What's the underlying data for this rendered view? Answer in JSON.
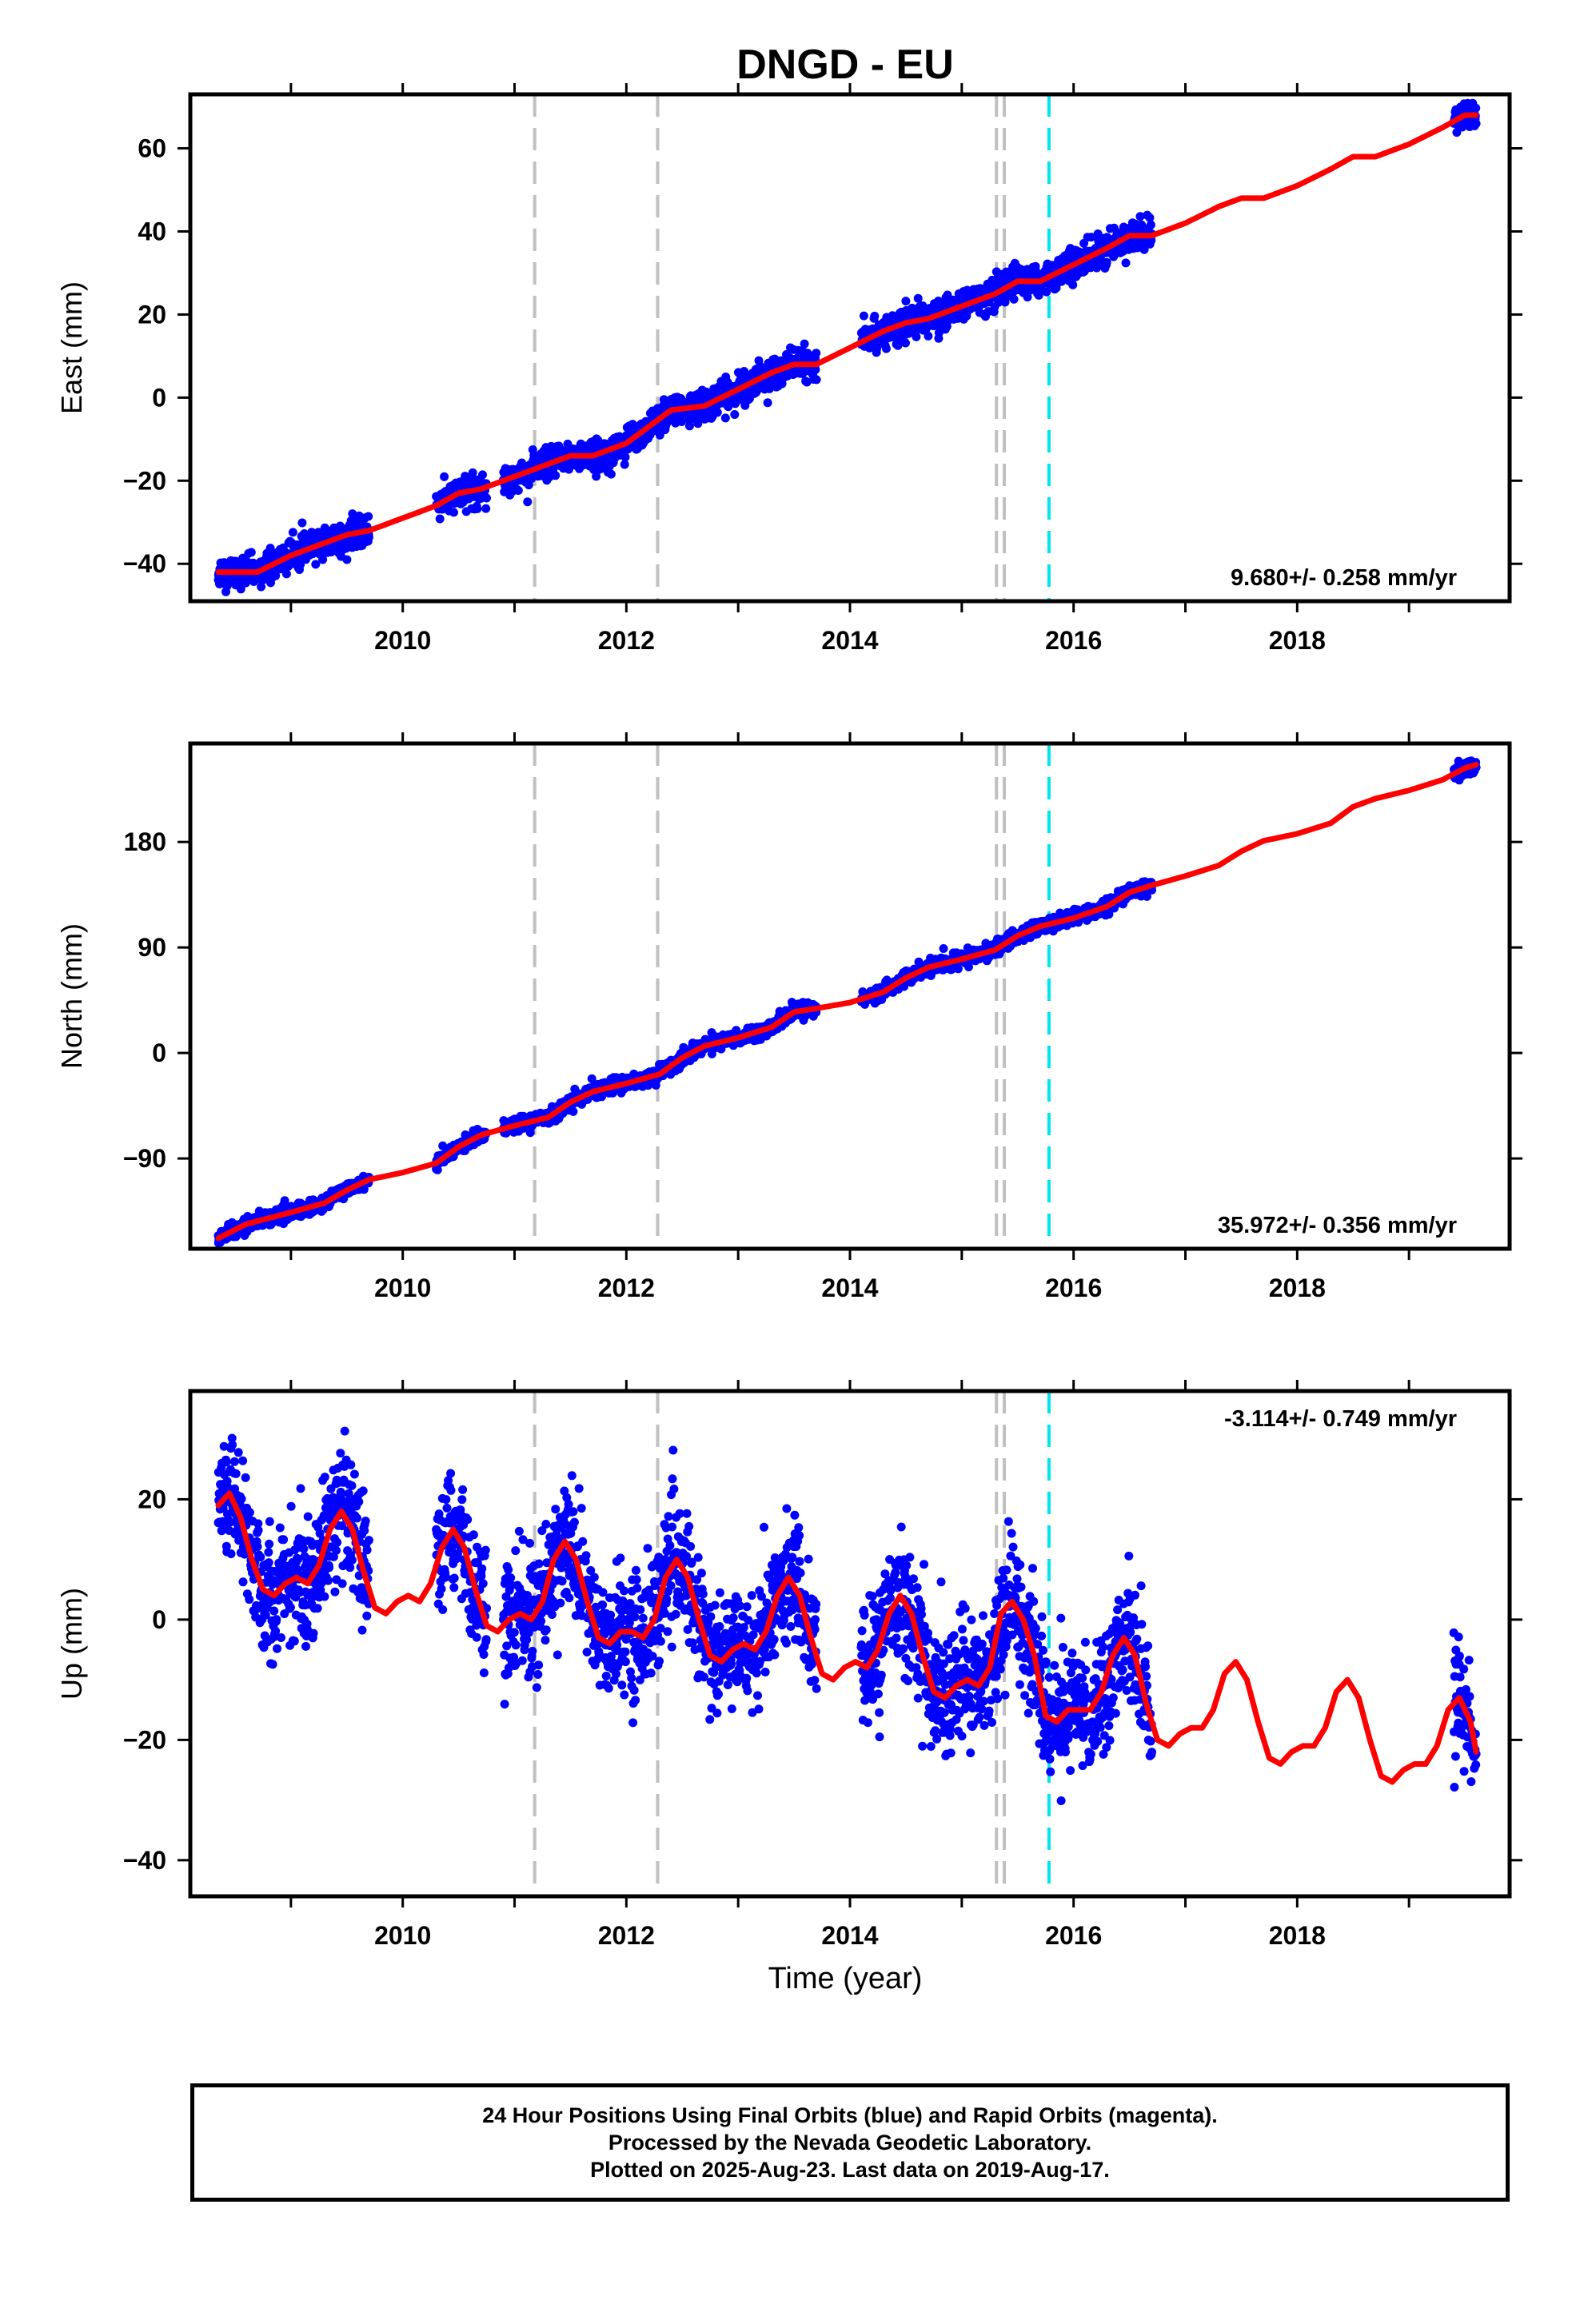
{
  "title": "DNGD - EU",
  "xlabel": "Time (year)",
  "caption": [
    "24 Hour Positions Using Final Orbits (blue) and Rapid Orbits (magenta).",
    "Processed by the Nevada Geodetic Laboratory.",
    "Plotted on 2025-Aug-23. Last data on 2019-Aug-17."
  ],
  "colors": {
    "points": "#0000ff",
    "fit": "#ff0000",
    "event_gray": "#c0c0c0",
    "event_cyan": "#00e5ee",
    "axis": "#000000"
  },
  "chart_data": [
    {
      "type": "scatter",
      "component": "East",
      "ylabel": "East (mm)",
      "rate_label": "9.680+/- 0.258 mm/yr",
      "rate_position": "bottom-right",
      "xlim": [
        2008.1,
        2019.9
      ],
      "ylim": [
        -49,
        73
      ],
      "yticks": [
        -40,
        -20,
        0,
        20,
        40,
        60
      ],
      "xticks": [
        2010,
        2012,
        2014,
        2016,
        2018
      ],
      "event_lines_gray": [
        2011.18,
        2012.28,
        2015.31,
        2015.38
      ],
      "event_lines_cyan": [
        2015.78
      ],
      "data_segments": [
        [
          2008.35,
          2009.7
        ],
        [
          2010.3,
          2010.75
        ],
        [
          2010.9,
          2013.7
        ],
        [
          2014.1,
          2016.7
        ],
        [
          2019.4,
          2019.6
        ]
      ],
      "fit_points": [
        [
          2008.35,
          -42
        ],
        [
          2008.7,
          -42
        ],
        [
          2009.0,
          -38
        ],
        [
          2009.3,
          -35
        ],
        [
          2009.5,
          -33
        ],
        [
          2009.7,
          -32
        ],
        [
          2010.0,
          -29
        ],
        [
          2010.3,
          -26
        ],
        [
          2010.5,
          -23
        ],
        [
          2010.7,
          -22
        ],
        [
          2011.0,
          -19
        ],
        [
          2011.3,
          -16
        ],
        [
          2011.5,
          -14
        ],
        [
          2011.7,
          -14
        ],
        [
          2012.0,
          -11
        ],
        [
          2012.2,
          -7
        ],
        [
          2012.4,
          -3
        ],
        [
          2012.7,
          -2
        ],
        [
          2013.0,
          2
        ],
        [
          2013.3,
          6
        ],
        [
          2013.5,
          8
        ],
        [
          2013.7,
          8
        ],
        [
          2014.0,
          12
        ],
        [
          2014.3,
          16
        ],
        [
          2014.5,
          18
        ],
        [
          2014.7,
          19
        ],
        [
          2015.0,
          22
        ],
        [
          2015.3,
          25
        ],
        [
          2015.5,
          28
        ],
        [
          2015.7,
          28
        ],
        [
          2016.0,
          32
        ],
        [
          2016.3,
          36
        ],
        [
          2016.5,
          39
        ],
        [
          2016.7,
          39
        ],
        [
          2017.0,
          42
        ],
        [
          2017.3,
          46
        ],
        [
          2017.5,
          48
        ],
        [
          2017.7,
          48
        ],
        [
          2018.0,
          51
        ],
        [
          2018.3,
          55
        ],
        [
          2018.5,
          58
        ],
        [
          2018.7,
          58
        ],
        [
          2019.0,
          61
        ],
        [
          2019.3,
          65
        ],
        [
          2019.5,
          68
        ],
        [
          2019.6,
          68
        ]
      ],
      "noise_mm": 1.8
    },
    {
      "type": "scatter",
      "component": "North",
      "ylabel": "North (mm)",
      "rate_label": "35.972+/- 0.356 mm/yr",
      "rate_position": "bottom-right",
      "xlim": [
        2008.1,
        2019.9
      ],
      "ylim": [
        -167,
        264
      ],
      "yticks": [
        -90,
        0,
        90,
        180
      ],
      "xticks": [
        2010,
        2012,
        2014,
        2016,
        2018
      ],
      "event_lines_gray": [
        2011.18,
        2012.28,
        2015.31,
        2015.38
      ],
      "event_lines_cyan": [
        2015.78
      ],
      "data_segments": [
        [
          2008.35,
          2009.7
        ],
        [
          2010.3,
          2010.75
        ],
        [
          2010.9,
          2013.7
        ],
        [
          2014.1,
          2016.7
        ],
        [
          2019.4,
          2019.6
        ]
      ],
      "fit_points": [
        [
          2008.35,
          -158
        ],
        [
          2008.6,
          -146
        ],
        [
          2009.0,
          -136
        ],
        [
          2009.3,
          -128
        ],
        [
          2009.5,
          -117
        ],
        [
          2009.7,
          -108
        ],
        [
          2010.0,
          -102
        ],
        [
          2010.3,
          -94
        ],
        [
          2010.5,
          -80
        ],
        [
          2010.7,
          -70
        ],
        [
          2011.0,
          -62
        ],
        [
          2011.3,
          -55
        ],
        [
          2011.5,
          -42
        ],
        [
          2011.7,
          -33
        ],
        [
          2012.0,
          -26
        ],
        [
          2012.3,
          -18
        ],
        [
          2012.5,
          -4
        ],
        [
          2012.7,
          6
        ],
        [
          2013.0,
          13
        ],
        [
          2013.3,
          22
        ],
        [
          2013.5,
          35
        ],
        [
          2013.7,
          38
        ],
        [
          2014.0,
          43
        ],
        [
          2014.3,
          52
        ],
        [
          2014.5,
          64
        ],
        [
          2014.7,
          73
        ],
        [
          2015.0,
          80
        ],
        [
          2015.3,
          88
        ],
        [
          2015.5,
          100
        ],
        [
          2015.7,
          108
        ],
        [
          2016.0,
          115
        ],
        [
          2016.3,
          125
        ],
        [
          2016.5,
          137
        ],
        [
          2016.7,
          143
        ],
        [
          2017.0,
          151
        ],
        [
          2017.3,
          160
        ],
        [
          2017.5,
          172
        ],
        [
          2017.7,
          181
        ],
        [
          2018.0,
          187
        ],
        [
          2018.3,
          196
        ],
        [
          2018.5,
          210
        ],
        [
          2018.7,
          217
        ],
        [
          2019.0,
          224
        ],
        [
          2019.3,
          233
        ],
        [
          2019.5,
          243
        ],
        [
          2019.6,
          246
        ]
      ],
      "noise_mm": 3.0
    },
    {
      "type": "scatter",
      "component": "Up",
      "ylabel": "Up (mm)",
      "rate_label": "-3.114+/- 0.749 mm/yr",
      "rate_position": "top-right",
      "xlim": [
        2008.1,
        2019.9
      ],
      "ylim": [
        -46,
        38
      ],
      "yticks": [
        -40,
        -20,
        0,
        20
      ],
      "xticks": [
        2010,
        2012,
        2014,
        2016,
        2018
      ],
      "event_lines_gray": [
        2011.18,
        2012.28,
        2015.31,
        2015.38
      ],
      "event_lines_cyan": [
        2015.78
      ],
      "data_segments": [
        [
          2008.35,
          2009.7
        ],
        [
          2010.3,
          2010.75
        ],
        [
          2010.9,
          2013.7
        ],
        [
          2014.1,
          2016.7
        ],
        [
          2019.4,
          2019.6
        ]
      ],
      "fit_points": [
        [
          2008.35,
          19
        ],
        [
          2008.45,
          21
        ],
        [
          2008.55,
          17
        ],
        [
          2008.65,
          10
        ],
        [
          2008.75,
          5
        ],
        [
          2008.85,
          4
        ],
        [
          2008.95,
          6
        ],
        [
          2009.05,
          7
        ],
        [
          2009.15,
          6
        ],
        [
          2009.25,
          9
        ],
        [
          2009.35,
          15
        ],
        [
          2009.45,
          18
        ],
        [
          2009.55,
          15
        ],
        [
          2009.65,
          8
        ],
        [
          2009.75,
          2
        ],
        [
          2009.85,
          1
        ],
        [
          2009.95,
          3
        ],
        [
          2010.05,
          4
        ],
        [
          2010.15,
          3
        ],
        [
          2010.25,
          6
        ],
        [
          2010.35,
          12
        ],
        [
          2010.45,
          15
        ],
        [
          2010.55,
          12
        ],
        [
          2010.65,
          5
        ],
        [
          2010.75,
          -1
        ],
        [
          2010.85,
          -2
        ],
        [
          2010.95,
          0
        ],
        [
          2011.05,
          1
        ],
        [
          2011.15,
          0
        ],
        [
          2011.25,
          3
        ],
        [
          2011.35,
          10
        ],
        [
          2011.45,
          13
        ],
        [
          2011.55,
          10
        ],
        [
          2011.65,
          3
        ],
        [
          2011.75,
          -3
        ],
        [
          2011.85,
          -4
        ],
        [
          2011.95,
          -2
        ],
        [
          2012.05,
          -2
        ],
        [
          2012.15,
          -3
        ],
        [
          2012.25,
          0
        ],
        [
          2012.35,
          7
        ],
        [
          2012.45,
          10
        ],
        [
          2012.55,
          7
        ],
        [
          2012.65,
          0
        ],
        [
          2012.75,
          -6
        ],
        [
          2012.85,
          -7
        ],
        [
          2012.95,
          -5
        ],
        [
          2013.05,
          -4
        ],
        [
          2013.15,
          -5
        ],
        [
          2013.25,
          -2
        ],
        [
          2013.35,
          4
        ],
        [
          2013.45,
          7
        ],
        [
          2013.55,
          4
        ],
        [
          2013.65,
          -3
        ],
        [
          2013.75,
          -9
        ],
        [
          2013.85,
          -10
        ],
        [
          2013.95,
          -8
        ],
        [
          2014.05,
          -7
        ],
        [
          2014.15,
          -8
        ],
        [
          2014.25,
          -5
        ],
        [
          2014.35,
          1
        ],
        [
          2014.45,
          4
        ],
        [
          2014.55,
          1
        ],
        [
          2014.65,
          -6
        ],
        [
          2014.75,
          -12
        ],
        [
          2014.85,
          -13
        ],
        [
          2014.95,
          -11
        ],
        [
          2015.05,
          -10
        ],
        [
          2015.15,
          -11
        ],
        [
          2015.25,
          -8
        ],
        [
          2015.35,
          1
        ],
        [
          2015.45,
          3
        ],
        [
          2015.55,
          0
        ],
        [
          2015.65,
          -6
        ],
        [
          2015.75,
          -16
        ],
        [
          2015.85,
          -17
        ],
        [
          2015.95,
          -15
        ],
        [
          2016.05,
          -15
        ],
        [
          2016.15,
          -15
        ],
        [
          2016.25,
          -12
        ],
        [
          2016.35,
          -6
        ],
        [
          2016.45,
          -3
        ],
        [
          2016.55,
          -6
        ],
        [
          2016.65,
          -14
        ],
        [
          2016.75,
          -20
        ],
        [
          2016.85,
          -21
        ],
        [
          2016.95,
          -19
        ],
        [
          2017.05,
          -18
        ],
        [
          2017.15,
          -18
        ],
        [
          2017.25,
          -15
        ],
        [
          2017.35,
          -9
        ],
        [
          2017.45,
          -7
        ],
        [
          2017.55,
          -10
        ],
        [
          2017.65,
          -17
        ],
        [
          2017.75,
          -23
        ],
        [
          2017.85,
          -24
        ],
        [
          2017.95,
          -22
        ],
        [
          2018.05,
          -21
        ],
        [
          2018.15,
          -21
        ],
        [
          2018.25,
          -18
        ],
        [
          2018.35,
          -12
        ],
        [
          2018.45,
          -10
        ],
        [
          2018.55,
          -13
        ],
        [
          2018.65,
          -20
        ],
        [
          2018.75,
          -26
        ],
        [
          2018.85,
          -27
        ],
        [
          2018.95,
          -25
        ],
        [
          2019.05,
          -24
        ],
        [
          2019.15,
          -24
        ],
        [
          2019.25,
          -21
        ],
        [
          2019.35,
          -15
        ],
        [
          2019.45,
          -13
        ],
        [
          2019.55,
          -17
        ],
        [
          2019.6,
          -22
        ]
      ],
      "noise_mm": 5.0
    }
  ]
}
